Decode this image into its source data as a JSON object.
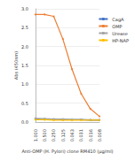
{
  "chart_data": {
    "type": "line",
    "x_label": "Anti-OMP (H. Pylori) clone RM410 (µg/ml)",
    "y_label": "Abs (450nm)",
    "categories": [
      "1.000",
      "0.500",
      "0.250",
      "0.125",
      "0.063",
      "0.031",
      "0.016",
      "0.008"
    ],
    "series": [
      {
        "name": "CagA",
        "color": "#4472c4",
        "values": [
          0.08,
          0.07,
          0.07,
          0.06,
          0.06,
          0.06,
          0.05,
          0.05
        ]
      },
      {
        "name": "OMP",
        "color": "#ed7d31",
        "values": [
          2.85,
          2.85,
          2.8,
          2.2,
          1.4,
          0.75,
          0.35,
          0.15
        ]
      },
      {
        "name": "Urease",
        "color": "#a5a5a5",
        "values": [
          0.1,
          0.09,
          0.08,
          0.08,
          0.07,
          0.07,
          0.06,
          0.06
        ]
      },
      {
        "name": "HP-NAP",
        "color": "#ffc000",
        "values": [
          0.06,
          0.06,
          0.05,
          0.05,
          0.05,
          0.05,
          0.05,
          0.05
        ]
      }
    ],
    "ylim": [
      0,
      3
    ],
    "yticks": [
      {
        "value": 0,
        "label": "0.0"
      },
      {
        "value": 0.5,
        "label": "0.5"
      },
      {
        "value": 1,
        "label": "1.0"
      },
      {
        "value": 1.5,
        "label": "1.5"
      },
      {
        "value": 2,
        "label": "2.0"
      },
      {
        "value": 2.5,
        "label": "2.5"
      },
      {
        "value": 3,
        "label": "3.0"
      }
    ],
    "grid": true,
    "legend": "right"
  }
}
